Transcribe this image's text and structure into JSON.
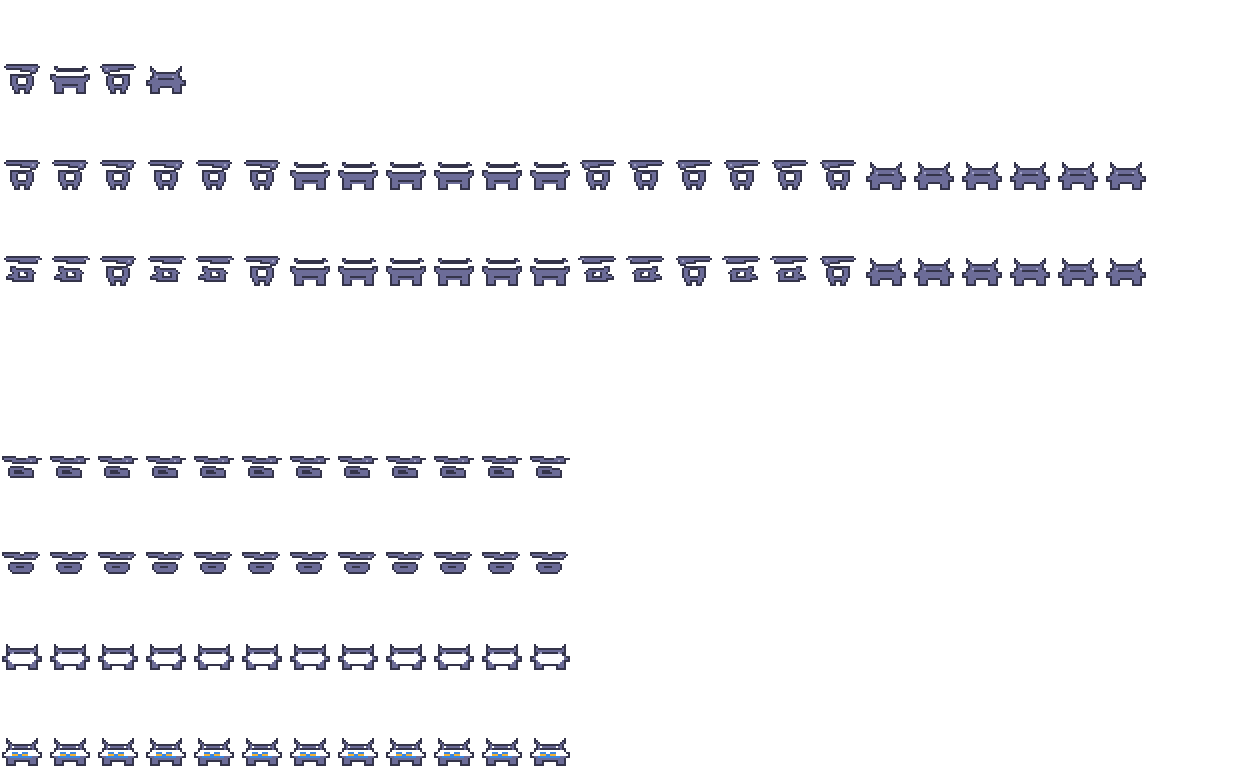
{
  "palette": {
    "d": "#34344a",
    "m": "#6c6c98",
    "l": "#a4a4c8",
    "w": "#ffffff",
    "b": "#3a86e0",
    "y": "#f2b233"
  },
  "rows": [
    [],
    [
      "side",
      "front",
      "side-flip",
      "horned"
    ],
    [],
    [
      "side",
      "side",
      "side",
      "side",
      "side",
      "side",
      "front",
      "front",
      "front",
      "front",
      "front",
      "front",
      "side-flip",
      "side-flip",
      "side-flip",
      "side-flip",
      "side-flip",
      "side-flip",
      "horned",
      "horned",
      "horned",
      "horned",
      "horned",
      "horned"
    ],
    [],
    [
      "side-attack",
      "side-attack",
      "side",
      "side-attack",
      "side-attack",
      "side",
      "front",
      "front",
      "front",
      "front",
      "front",
      "front",
      "side-attack-flip",
      "side-attack-flip",
      "side-flip",
      "side-attack-flip",
      "side-attack-flip",
      "side-flip",
      "horned",
      "horned",
      "horned",
      "horned",
      "horned",
      "horned"
    ],
    [],
    [],
    [],
    [
      "side-low",
      "side-low",
      "side-low",
      "side-low",
      "side-low",
      "side-low",
      "side-low",
      "side-low",
      "side-low",
      "side-low",
      "side-low",
      "side-low"
    ],
    [],
    [
      "head",
      "head",
      "head",
      "head",
      "head",
      "head",
      "head",
      "head",
      "head",
      "head",
      "head",
      "head"
    ],
    [],
    [
      "horned-white",
      "horned-white",
      "horned-white",
      "horned-white",
      "horned-white",
      "horned-white",
      "horned-white",
      "horned-white",
      "horned-white",
      "horned-white",
      "horned-white",
      "horned-white"
    ],
    [],
    [
      "horned-striped",
      "horned-striped",
      "horned-striped",
      "horned-striped",
      "horned-striped",
      "horned-striped",
      "horned-striped",
      "horned-striped",
      "horned-striped",
      "horned-striped",
      "horned-striped",
      "horned-striped"
    ]
  ]
}
